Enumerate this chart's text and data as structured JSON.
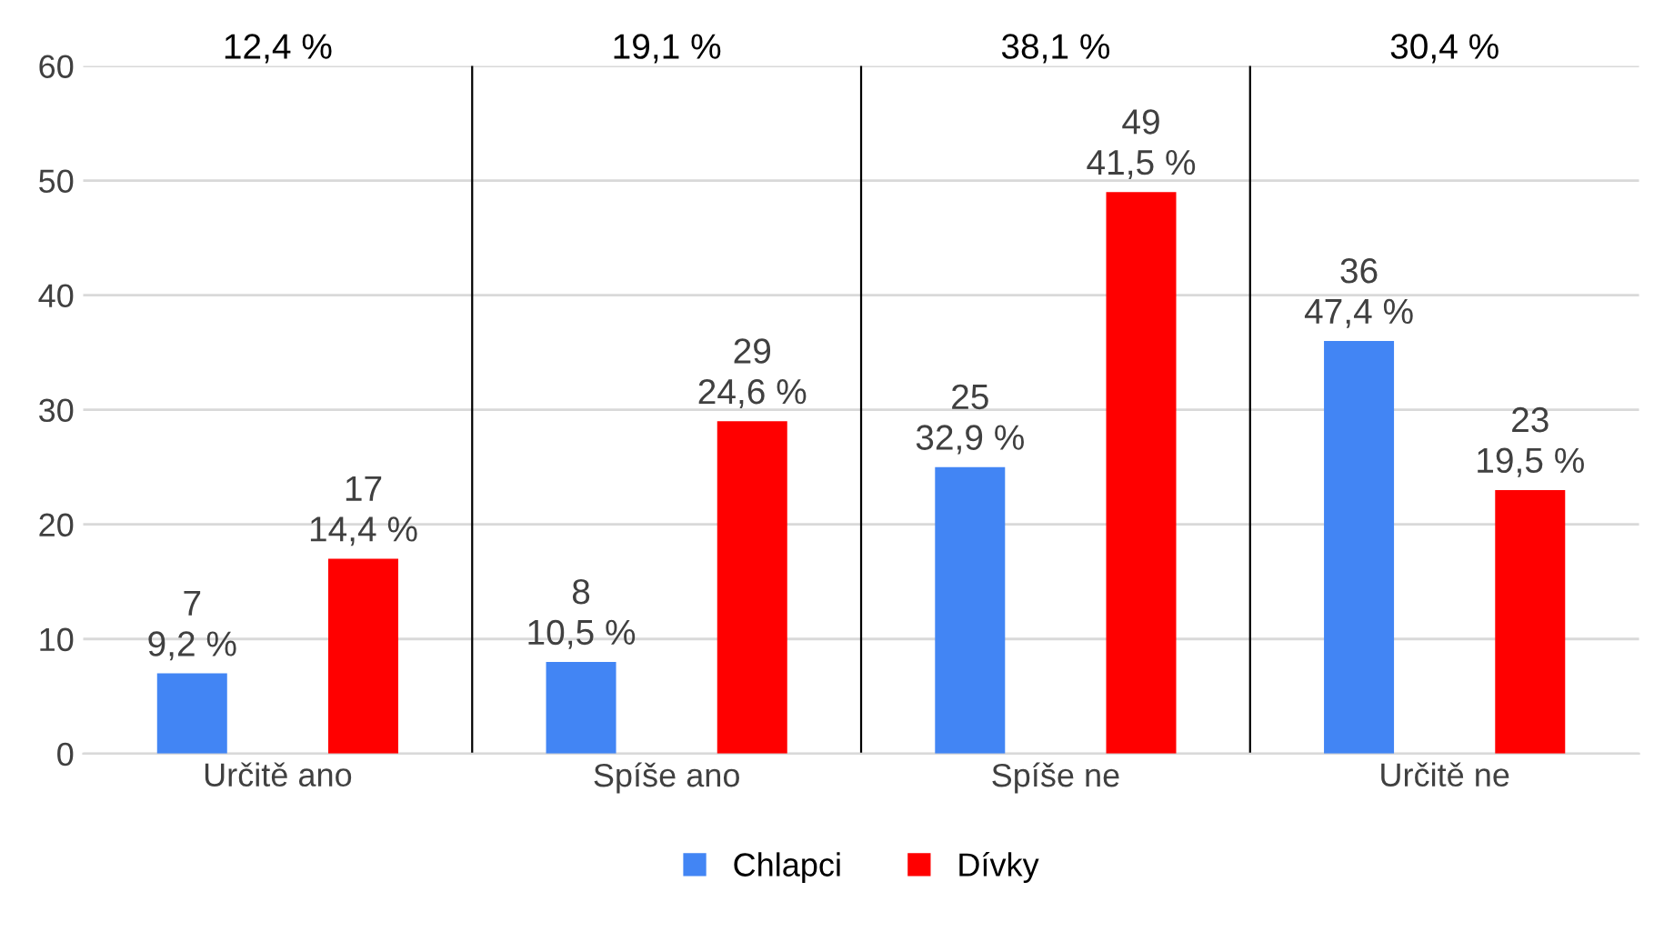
{
  "chart_data": {
    "type": "bar",
    "categories": [
      "Určitě ano",
      "Spíše ano",
      "Spíše ne",
      "Určitě ne"
    ],
    "series": [
      {
        "name": "Chlapci",
        "color": "#4285f4",
        "values": [
          7,
          8,
          25,
          36
        ],
        "value_labels": [
          "7\n9,2 %",
          "8\n10,5 %",
          "25\n32,9 %",
          "36\n47,4 %"
        ]
      },
      {
        "name": "Dívky",
        "color": "#ff0000",
        "values": [
          17,
          29,
          49,
          23
        ],
        "value_labels": [
          "17\n14,4 %",
          "29\n24,6 %",
          "49\n41,5 %",
          "23\n19,5 %"
        ]
      }
    ],
    "annotations": [
      "12,4 %",
      "19,1 %",
      "38,1 %",
      "30,4 %"
    ],
    "ylim": [
      0,
      60
    ],
    "yticks": [
      0,
      10,
      20,
      30,
      40,
      50,
      60
    ],
    "grid": "y",
    "legend": "bottom"
  }
}
